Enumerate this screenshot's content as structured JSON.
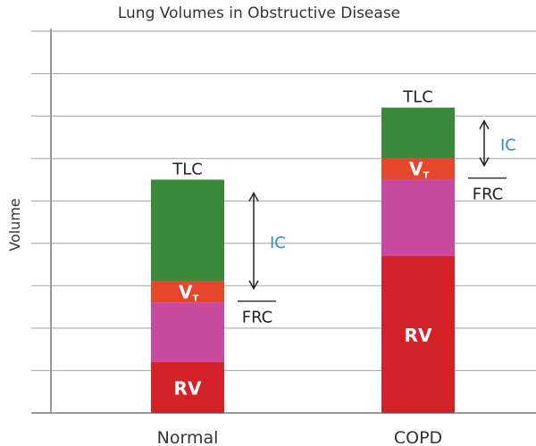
{
  "chart_data": {
    "type": "bar",
    "stacked": true,
    "title": "Lung Volumes in Obstructive Disease",
    "ylabel": "Volume",
    "xlabel": "",
    "ylim": [
      0,
      9
    ],
    "grid": true,
    "categories": [
      "Normal",
      "COPD"
    ],
    "series": [
      {
        "name": "RV",
        "color": "#d42127",
        "values": [
          1.2,
          3.7
        ]
      },
      {
        "name": "",
        "color": "#c84a9f",
        "values": [
          1.4,
          1.8
        ]
      },
      {
        "name": "VT",
        "color": "#e8462b",
        "values": [
          0.5,
          0.5
        ]
      },
      {
        "name": "",
        "color": "#3b8a3b",
        "values": [
          2.4,
          1.2
        ]
      }
    ],
    "annotations": {
      "tlc": "TLC",
      "frc": "FRC",
      "ic": "IC",
      "vt_main": "V",
      "vt_sub": "T",
      "rv": "RV"
    }
  }
}
